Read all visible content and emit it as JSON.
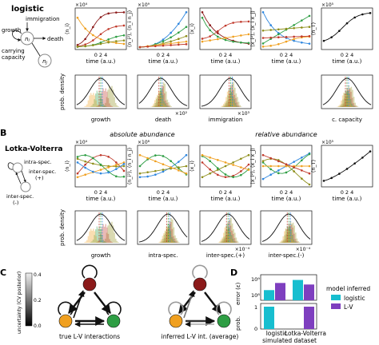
{
  "colors": {
    "red": "#c0392b",
    "darkred": "#8b1a1a",
    "green": "#2e9e44",
    "olive": "#8e8e1a",
    "orange": "#f0a020",
    "blue": "#2e86de",
    "cyan": "#17becf",
    "purple": "#7e3fbf",
    "gray": "#888888",
    "black": "#111111"
  },
  "panel_A": {
    "title": "logistic",
    "diagram": {
      "node": "n_i",
      "node2": "n_j",
      "growth": "growth",
      "immigration": "immigration",
      "death": "death",
      "capacity": "carrying\ncapacity"
    },
    "ts_ylabels": [
      "⟨n_i⟩",
      "⟨n_i²⟩, ⟨n_i n_j⟩",
      "⟨x_i⟩",
      "⟨x_i²⟩, ⟨x_i x_j⟩",
      "⟨n_T⟩"
    ],
    "ts_mult": [
      "×10⁴",
      "×10⁹",
      "",
      "",
      "×10⁵"
    ],
    "ts_xlabel": "time (a.u.)",
    "post_ylabel": "prob. density",
    "post_xlabels": [
      "growth",
      "death",
      "immigration",
      "c. capacity"
    ],
    "post_mult": [
      "",
      "×10²",
      "×10³",
      ""
    ]
  },
  "panel_B": {
    "letter": "B",
    "title": "Lotka-Volterra",
    "sub_abs": "absolute abundance",
    "sub_rel": "relative abundance",
    "diagram": {
      "intra": "intra-spec.",
      "interp": "inter-spec.\n(+)",
      "intern": "inter-spec.\n(-)"
    },
    "ts_ylabels": [
      "⟨n_i⟩",
      "⟨n_i²⟩, ⟨n_i n_j⟩",
      "⟨x_i⟩",
      "⟨x_i²⟩, ⟨x_i x_j⟩",
      "⟨n_T⟩"
    ],
    "ts_mult": [
      "×10⁴",
      "×10⁸",
      "",
      "",
      "×10⁵"
    ],
    "ts_xlabel": "time (a.u.)",
    "post_ylabel": "prob. density",
    "post_xlabels": [
      "growth",
      "intra-spec.",
      "inter-spec.(+)",
      "inter-spec.(-)"
    ],
    "post_mult": [
      "",
      "",
      "×10⁻⁴",
      "×10⁻⁴"
    ]
  },
  "panel_C": {
    "letter": "C",
    "cbar_label": "uncertainty (CV posterior)",
    "cbar_ticks": [
      "0.0",
      "0.2",
      "0.4"
    ],
    "caption_true": "true L-V interactions",
    "caption_inferred": "inferred L-V int. (average)"
  },
  "panel_D": {
    "letter": "D",
    "ylabel_top": "error (ε)",
    "ylabel_bot": "prob.",
    "yticks_top": [
      "10⁹",
      "10⁸"
    ],
    "yticks_bot": [
      "1",
      "0"
    ],
    "xlabel": "simulated dataset",
    "categories": [
      "logistic",
      "Lotka-Volterra"
    ],
    "legend_title": "model inferred",
    "legend": [
      "logistic",
      "L-V"
    ]
  },
  "chart_data": [
    {
      "type": "bar",
      "title": "",
      "categories": [
        "logistic",
        "Lotka-Volterra"
      ],
      "xlabel": "simulated dataset",
      "ylabel": "error (ε)",
      "scale": "log",
      "series": [
        {
          "name": "logistic",
          "values": [
            300000000,
            900000000
          ]
        },
        {
          "name": "L-V",
          "values": [
            650000000,
            550000000
          ]
        }
      ]
    },
    {
      "type": "bar",
      "title": "",
      "categories": [
        "logistic",
        "Lotka-Volterra"
      ],
      "xlabel": "simulated dataset",
      "ylabel": "prob.",
      "ylim": [
        0,
        1
      ],
      "series": [
        {
          "name": "logistic",
          "values": [
            1,
            0
          ]
        },
        {
          "name": "L-V",
          "values": [
            0,
            1
          ]
        }
      ]
    }
  ]
}
